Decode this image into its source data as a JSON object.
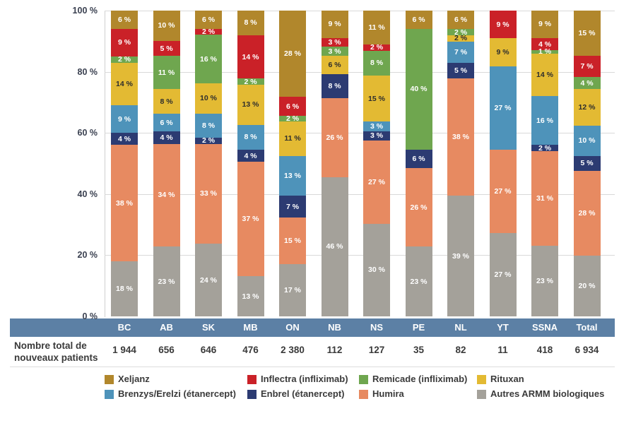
{
  "chart_data": {
    "type": "bar",
    "subtype": "stacked-100-percent",
    "title": "",
    "xlabel": "",
    "ylabel": "",
    "grid": true,
    "y_axis": {
      "range": [
        0,
        100
      ],
      "tick_values": [
        0,
        20,
        40,
        60,
        80,
        100
      ],
      "tick_labels": [
        "0 %",
        "20 %",
        "40 %",
        "60 %",
        "80 %",
        "100 %"
      ]
    },
    "categories": [
      "BC",
      "AB",
      "SK",
      "MB",
      "ON",
      "NB",
      "NS",
      "PE",
      "NL",
      "YT",
      "SSNA",
      "Total"
    ],
    "series": [
      {
        "name": "Xeljanz",
        "color": "#b1872c",
        "label_color": "#ffffff",
        "values": [
          6,
          10,
          6,
          8,
          28,
          9,
          11,
          6,
          6,
          0,
          9,
          15
        ]
      },
      {
        "name": "Inflectra (infliximab)",
        "color": "#ca2128",
        "label_color": "#ffffff",
        "values": [
          9,
          5,
          2,
          14,
          6,
          3,
          2,
          0,
          0,
          9,
          4,
          7
        ]
      },
      {
        "name": "Remicade (infliximab)",
        "color": "#6fa64f",
        "label_color": "#ffffff",
        "values": [
          2,
          11,
          16,
          2,
          2,
          3,
          8,
          40,
          2,
          0,
          1,
          4
        ]
      },
      {
        "name": "Rituxan",
        "color": "#e3ba33",
        "label_color": "#2d2d2d",
        "values": [
          14,
          8,
          10,
          13,
          11,
          6,
          15,
          0,
          2,
          9,
          14,
          12
        ]
      },
      {
        "name": "Brenzys/Erelzi (étanercept)",
        "color": "#4e93ba",
        "label_color": "#ffffff",
        "values": [
          9,
          6,
          8,
          8,
          13,
          0,
          3,
          0,
          7,
          27,
          16,
          10
        ]
      },
      {
        "name": "Enbrel (étanercept)",
        "color": "#2c3b72",
        "label_color": "#ffffff",
        "values": [
          4,
          4,
          2,
          4,
          7,
          8,
          3,
          6,
          5,
          0,
          2,
          5
        ]
      },
      {
        "name": "Humira",
        "color": "#e78a61",
        "label_color": "#ffffff",
        "values": [
          38,
          34,
          33,
          37,
          15,
          26,
          27,
          26,
          38,
          27,
          31,
          28
        ]
      },
      {
        "name": "Autres ARMM biologiques",
        "color": "#a4a19a",
        "label_color": "#ffffff",
        "values": [
          18,
          23,
          24,
          13,
          17,
          46,
          30,
          23,
          39,
          27,
          23,
          20
        ]
      }
    ],
    "value_suffix": " %",
    "legend_position": "bottom"
  },
  "table": {
    "row_label_line1": "Nombre total de",
    "row_label_line2": "nouveaux patients",
    "values": [
      "1 944",
      "656",
      "646",
      "476",
      "2 380",
      "112",
      "127",
      "35",
      "82",
      "11",
      "418",
      "6 934"
    ]
  },
  "legend": {
    "items": [
      {
        "label": "Xeljanz",
        "color": "#b1872c"
      },
      {
        "label": "Inflectra (infliximab)",
        "color": "#ca2128"
      },
      {
        "label": "Remicade (infliximab)",
        "color": "#6fa64f"
      },
      {
        "label": "Rituxan",
        "color": "#e3ba33"
      },
      {
        "label": "Brenzys/Erelzi (étanercept)",
        "color": "#4e93ba"
      },
      {
        "label": "Enbrel (étanercept)",
        "color": "#2c3b72"
      },
      {
        "label": "Humira",
        "color": "#e78a61"
      },
      {
        "label": "Autres ARMM biologiques",
        "color": "#a4a19a"
      }
    ]
  },
  "colors": {
    "axis_band": "#5c80a5",
    "grid": "#d9d9d9",
    "axis_text": "#3a4050",
    "text": "#3a3a3a",
    "background": "#ffffff"
  }
}
